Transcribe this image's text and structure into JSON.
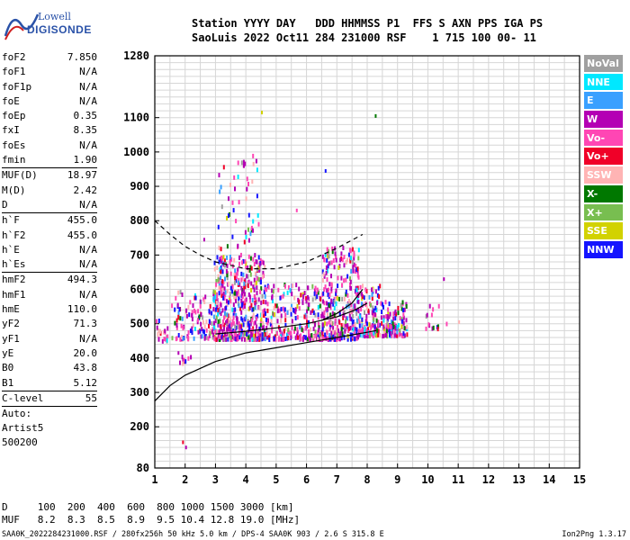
{
  "logo": {
    "line1": "Lowell",
    "line2": "DIGISONDE"
  },
  "header": {
    "line1": "Station YYYY DAY   DDD HHMMSS P1  FFS S AXN PPS IGA PS",
    "line2": "SaoLuis 2022 Oct11 284 231000 RSF    1 715 100 00- 11"
  },
  "params": [
    {
      "name": "foF2",
      "value": "7.850"
    },
    {
      "name": "foF1",
      "value": "N/A"
    },
    {
      "name": "foF1p",
      "value": "N/A"
    },
    {
      "name": "foE",
      "value": "N/A"
    },
    {
      "name": "foEp",
      "value": "0.35"
    },
    {
      "name": "fxI",
      "value": "8.35"
    },
    {
      "name": "foEs",
      "value": "N/A"
    },
    {
      "name": "fmin",
      "value": "1.90"
    },
    {
      "name": "MUF(D)",
      "value": "18.97",
      "sep": true
    },
    {
      "name": "M(D)",
      "value": "2.42"
    },
    {
      "name": "D",
      "value": "N/A"
    },
    {
      "name": "h`F",
      "value": "455.0",
      "sep": true
    },
    {
      "name": "h`F2",
      "value": "455.0"
    },
    {
      "name": "h`E",
      "value": "N/A"
    },
    {
      "name": "h`Es",
      "value": "N/A"
    },
    {
      "name": "hmF2",
      "value": "494.3",
      "sep": true
    },
    {
      "name": "hmF1",
      "value": "N/A"
    },
    {
      "name": "hmE",
      "value": "110.0"
    },
    {
      "name": "yF2",
      "value": "71.3"
    },
    {
      "name": "yF1",
      "value": "N/A"
    },
    {
      "name": "yE",
      "value": "20.0"
    },
    {
      "name": "B0",
      "value": "43.8"
    },
    {
      "name": "B1",
      "value": "5.12"
    },
    {
      "name": "C-level",
      "value": "55",
      "sep": true
    }
  ],
  "params_footer": {
    "auto": "Auto:",
    "artist": "Artist5",
    "code": "500200"
  },
  "legend": [
    {
      "label": "NoVal",
      "color": "#a0a0a0"
    },
    {
      "label": "NNE",
      "color": "#00e8ff"
    },
    {
      "label": "E",
      "color": "#3aa0ff"
    },
    {
      "label": "W",
      "color": "#b400b4"
    },
    {
      "label": "Vo-",
      "color": "#ff46b4"
    },
    {
      "label": "Vo+",
      "color": "#f00028"
    },
    {
      "label": "SSW",
      "color": "#ffb4b4"
    },
    {
      "label": "X-",
      "color": "#007800"
    },
    {
      "label": "X+",
      "color": "#78be50"
    },
    {
      "label": "SSE",
      "color": "#d2d200"
    },
    {
      "label": "NNW",
      "color": "#1414ff"
    }
  ],
  "bottom": {
    "line1": "D     100  200  400  600  800 1000 1500 3000 [km]",
    "line2": "MUF   8.2  8.3  8.5  8.9  9.5 10.4 12.8 19.0 [MHz]"
  },
  "footer": {
    "left": "SAA0K_2022284231000.RSF / 280fx256h 50 kHz 5.0 km / DPS-4 SAA0K 903 / 2.6 S 315.8 E",
    "right": "Ion2Png 1.3.17"
  },
  "chart_data": {
    "type": "scatter",
    "xlim": [
      1,
      15
    ],
    "ylim": [
      80,
      1280
    ],
    "x_ticks": [
      1,
      2,
      3,
      4,
      5,
      6,
      7,
      8,
      9,
      10,
      11,
      12,
      13,
      14,
      15
    ],
    "y_ticks": [
      80,
      200,
      300,
      400,
      500,
      600,
      700,
      800,
      900,
      1000,
      1100,
      1280
    ],
    "grid": true,
    "clusters": [
      {
        "x": [
          1.0,
          1.4
        ],
        "y": [
          455,
          520
        ],
        "density": 20
      },
      {
        "x": [
          1.5,
          2.9
        ],
        "y": [
          460,
          600
        ],
        "density": 110
      },
      {
        "x": [
          1.8,
          2.2
        ],
        "y": [
          390,
          410
        ],
        "density": 10
      },
      {
        "x": [
          2.9,
          4.6
        ],
        "y": [
          460,
          700
        ],
        "density": 520
      },
      {
        "x": [
          3.0,
          4.4
        ],
        "y": [
          700,
          1000
        ],
        "density": 60
      },
      {
        "x": [
          4.6,
          6.5
        ],
        "y": [
          460,
          620
        ],
        "density": 260
      },
      {
        "x": [
          6.5,
          7.7
        ],
        "y": [
          460,
          730
        ],
        "density": 300
      },
      {
        "x": [
          7.7,
          8.4
        ],
        "y": [
          470,
          620
        ],
        "density": 140
      },
      {
        "x": [
          8.4,
          9.3
        ],
        "y": [
          470,
          570
        ],
        "density": 120
      },
      {
        "x": [
          9.9,
          10.6
        ],
        "y": [
          490,
          560
        ],
        "density": 15
      }
    ],
    "profile_curve": [
      [
        1.0,
        275
      ],
      [
        1.5,
        320
      ],
      [
        2,
        350
      ],
      [
        3,
        390
      ],
      [
        4,
        415
      ],
      [
        5,
        430
      ],
      [
        6,
        445
      ],
      [
        7,
        460
      ],
      [
        8,
        475
      ],
      [
        8.3,
        480
      ]
    ],
    "trace_lower": [
      [
        3.0,
        470
      ],
      [
        4.0,
        478
      ],
      [
        5.0,
        488
      ],
      [
        6.0,
        500
      ],
      [
        7.0,
        520
      ],
      [
        7.6,
        540
      ],
      [
        8.0,
        560
      ]
    ],
    "trace_upper": [
      [
        6.5,
        510
      ],
      [
        7.0,
        530
      ],
      [
        7.5,
        560
      ],
      [
        7.85,
        600
      ]
    ],
    "dashed_curve": [
      [
        1.0,
        800
      ],
      [
        1.5,
        760
      ],
      [
        2.0,
        725
      ],
      [
        2.5,
        700
      ],
      [
        3.0,
        680
      ],
      [
        4.0,
        660
      ],
      [
        5.0,
        660
      ],
      [
        6.0,
        680
      ],
      [
        7.0,
        720
      ],
      [
        7.85,
        760
      ]
    ]
  }
}
